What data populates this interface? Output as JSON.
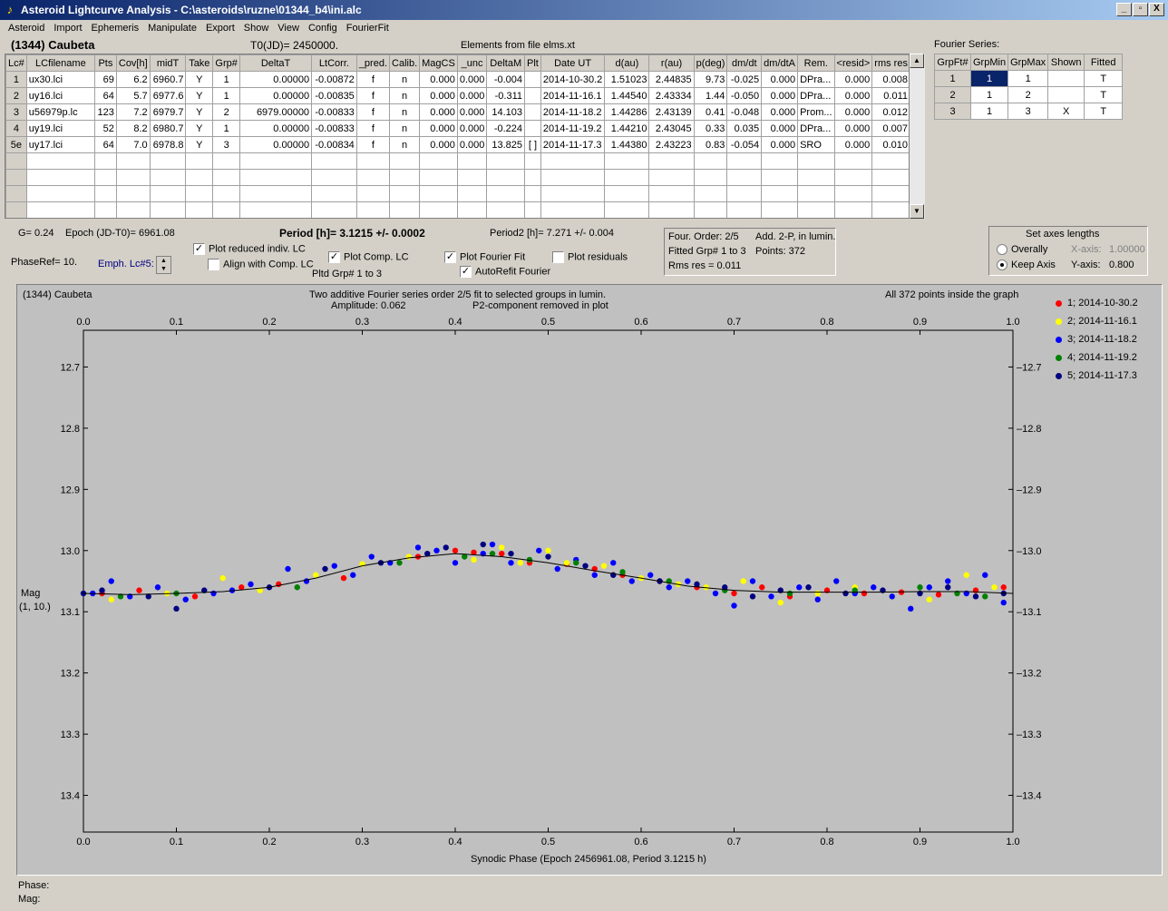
{
  "window": {
    "title": "Asteroid Lightcurve Analysis - C:\\asteroids\\ruzne\\01344_b4\\ini.alc",
    "buttons": [
      "_",
      "▫",
      "X"
    ]
  },
  "menu": [
    "Asteroid",
    "Import",
    "Ephemeris",
    "Manipulate",
    "Export",
    "Show",
    "View",
    "Config",
    "FourierFit"
  ],
  "header": {
    "asteroid": "(1344) Caubeta",
    "t0": "T0(JD)= 2450000.",
    "elements": "Elements from file elms.xt",
    "fourier_label": "Fourier Series:"
  },
  "lc_table": {
    "columns": [
      "Lc#",
      "LCfilename",
      "Pts",
      "Cov[h]",
      "midT",
      "Take",
      "Grp#",
      "DeltaT",
      "LtCorr.",
      "_pred.",
      "Calib.",
      "MagCS",
      "_unc",
      "DeltaM",
      "Plt",
      "Date UT",
      "d(au)",
      "r(au)",
      "p(deg)",
      "dm/dt",
      "dm/dtA",
      "Rem.",
      "<resid>",
      "rms res"
    ],
    "rows": [
      [
        "1",
        "ux30.lci",
        "69",
        "6.2",
        "6960.7",
        "Y",
        "1",
        "0.00000",
        "-0.00872",
        "f",
        "n",
        "0.000",
        "0.000",
        "-0.004",
        "",
        "2014-10-30.2",
        "1.51023",
        "2.44835",
        "9.73",
        "-0.025",
        "0.000",
        "DPra...",
        "0.000",
        "0.008"
      ],
      [
        "2",
        "uy16.lci",
        "64",
        "5.7",
        "6977.6",
        "Y",
        "1",
        "0.00000",
        "-0.00835",
        "f",
        "n",
        "0.000",
        "0.000",
        "-0.311",
        "",
        "2014-11-16.1",
        "1.44540",
        "2.43334",
        "1.44",
        "-0.050",
        "0.000",
        "DPra...",
        "0.000",
        "0.011"
      ],
      [
        "3",
        "u56979p.lc",
        "123",
        "7.2",
        "6979.7",
        "Y",
        "2",
        "6979.00000",
        "-0.00833",
        "f",
        "n",
        "0.000",
        "0.000",
        "14.103",
        "",
        "2014-11-18.2",
        "1.44286",
        "2.43139",
        "0.41",
        "-0.048",
        "0.000",
        "Prom...",
        "0.000",
        "0.012"
      ],
      [
        "4",
        "uy19.lci",
        "52",
        "8.2",
        "6980.7",
        "Y",
        "1",
        "0.00000",
        "-0.00833",
        "f",
        "n",
        "0.000",
        "0.000",
        "-0.224",
        "",
        "2014-11-19.2",
        "1.44210",
        "2.43045",
        "0.33",
        "0.035",
        "0.000",
        "DPra...",
        "0.000",
        "0.007"
      ],
      [
        "5e",
        "uy17.lci",
        "64",
        "7.0",
        "6978.8",
        "Y",
        "3",
        "0.00000",
        "-0.00834",
        "f",
        "n",
        "0.000",
        "0.000",
        "13.825",
        "[ ]",
        "2014-11-17.3",
        "1.44380",
        "2.43223",
        "0.83",
        "-0.054",
        "0.000",
        "SRO",
        "0.000",
        "0.010"
      ]
    ],
    "empty_rows": 4
  },
  "fourier_table": {
    "columns": [
      "GrpFt#",
      "GrpMin",
      "GrpMax",
      "Shown",
      "Fitted"
    ],
    "rows": [
      [
        "1",
        "1",
        "1",
        "",
        "T"
      ],
      [
        "2",
        "1",
        "2",
        "",
        "T"
      ],
      [
        "3",
        "1",
        "3",
        "X",
        "T"
      ]
    ]
  },
  "info": {
    "g": "G= 0.24",
    "epoch": "Epoch (JD-T0)= 6961.08",
    "period": "Period [h]= 3.1215 +/- 0.0002",
    "period2": "Period2 [h]= 7.271 +/- 0.004",
    "phaseref": "PhaseRef= 10.",
    "emph": "Emph. Lc#5:",
    "pltd": "Pltd Grp#  1   to   3"
  },
  "checkboxes": {
    "plot_reduced": {
      "label": "Plot reduced indiv. LC",
      "checked": "✓"
    },
    "align": {
      "label": "Align with Comp. LC",
      "checked": ""
    },
    "plot_comp": {
      "label": "Plot Comp. LC",
      "checked": "✓"
    },
    "plot_fourier": {
      "label": "Plot Fourier Fit",
      "checked": "✓"
    },
    "plot_resid": {
      "label": "Plot residuals",
      "checked": ""
    },
    "autorefit": {
      "label": "AutoRefit Fourier",
      "checked": "✓"
    }
  },
  "fit_box": {
    "order": "Four. Order:  2/5",
    "add": "Add. 2-P, in lumin.",
    "fitted": "Fitted Grp# 1 to 3",
    "points": "Points: 372",
    "rms": "Rms res     = 0.011"
  },
  "axes_box": {
    "title": "Set axes lengths",
    "overally": "Overally",
    "keep": "Keep Axis",
    "xaxis_label": "X-axis:",
    "xaxis_val": "1.00000",
    "yaxis_label": "Y-axis:",
    "yaxis_val": "0.800"
  },
  "plot": {
    "name": "(1344) Caubeta",
    "desc1": "Two additive Fourier series order 2/5 fit to selected groups in lumin.",
    "amp": "Amplitude: 0.062",
    "p2": "P2-component removed in plot",
    "inside": "All 372 points inside the graph",
    "ylabel1": "Mag",
    "ylabel2": "(1, 10.)",
    "xlabel": "Synodic Phase (Epoch 2456961.08, Period 3.1215 h)",
    "xticks": [
      "0.0",
      "0.1",
      "0.2",
      "0.3",
      "0.4",
      "0.5",
      "0.6",
      "0.7",
      "0.8",
      "0.9",
      "1.0"
    ],
    "yticks": [
      "12.7",
      "12.8",
      "12.9",
      "13.0",
      "13.1",
      "13.2",
      "13.3",
      "13.4"
    ]
  },
  "chart_data": {
    "type": "scatter",
    "title": "Two additive Fourier series order 2/5 fit to selected groups in lumin.",
    "xlabel": "Synodic Phase (Epoch 2456961.08, Period 3.1215 h)",
    "ylabel": "Mag",
    "xlim": [
      0.0,
      1.0
    ],
    "ylim": [
      12.64,
      13.46
    ],
    "y_inverted": true,
    "fit_curve": {
      "x": [
        0.0,
        0.05,
        0.1,
        0.15,
        0.2,
        0.25,
        0.3,
        0.35,
        0.4,
        0.45,
        0.5,
        0.55,
        0.6,
        0.65,
        0.7,
        0.75,
        0.8,
        0.85,
        0.9,
        0.95,
        1.0
      ],
      "y": [
        13.07,
        13.072,
        13.07,
        13.067,
        13.06,
        13.045,
        13.025,
        13.012,
        13.005,
        13.01,
        13.02,
        13.033,
        13.045,
        13.058,
        13.065,
        13.068,
        13.068,
        13.068,
        13.067,
        13.067,
        13.07
      ]
    },
    "series": [
      {
        "name": "1; 2014-10-30.2",
        "color": "#ff0000",
        "x": [
          0.02,
          0.06,
          0.12,
          0.17,
          0.21,
          0.28,
          0.36,
          0.4,
          0.42,
          0.45,
          0.48,
          0.52,
          0.55,
          0.58,
          0.62,
          0.66,
          0.7,
          0.73,
          0.76,
          0.8,
          0.84,
          0.88,
          0.92,
          0.96,
          0.99
        ],
        "y": [
          13.07,
          13.065,
          13.075,
          13.06,
          13.055,
          13.045,
          13.01,
          13.0,
          13.003,
          13.005,
          13.02,
          13.022,
          13.03,
          13.04,
          13.05,
          13.06,
          13.07,
          13.06,
          13.075,
          13.065,
          13.07,
          13.068,
          13.072,
          13.065,
          13.06
        ]
      },
      {
        "name": "2; 2014-11-16.1",
        "color": "#ffff00",
        "x": [
          0.03,
          0.09,
          0.15,
          0.19,
          0.25,
          0.3,
          0.35,
          0.42,
          0.45,
          0.47,
          0.5,
          0.52,
          0.56,
          0.6,
          0.64,
          0.67,
          0.71,
          0.75,
          0.79,
          0.83,
          0.87,
          0.91,
          0.95,
          0.98
        ],
        "y": [
          13.08,
          13.07,
          13.045,
          13.065,
          13.04,
          13.022,
          13.01,
          13.015,
          12.995,
          13.02,
          13.0,
          13.02,
          13.025,
          13.045,
          13.055,
          13.06,
          13.05,
          13.085,
          13.07,
          13.06,
          13.075,
          13.08,
          13.04,
          13.06
        ]
      },
      {
        "name": "3; 2014-11-18.2",
        "color": "#0000ff",
        "x": [
          0.01,
          0.03,
          0.05,
          0.08,
          0.11,
          0.14,
          0.16,
          0.18,
          0.22,
          0.24,
          0.27,
          0.29,
          0.31,
          0.33,
          0.36,
          0.38,
          0.4,
          0.43,
          0.44,
          0.46,
          0.49,
          0.51,
          0.53,
          0.55,
          0.57,
          0.59,
          0.61,
          0.63,
          0.65,
          0.68,
          0.7,
          0.72,
          0.74,
          0.77,
          0.79,
          0.81,
          0.83,
          0.85,
          0.87,
          0.89,
          0.91,
          0.93,
          0.95,
          0.97,
          0.99
        ],
        "y": [
          13.07,
          13.05,
          13.075,
          13.06,
          13.08,
          13.07,
          13.065,
          13.055,
          13.03,
          13.05,
          13.025,
          13.04,
          13.01,
          13.02,
          12.995,
          13.0,
          13.02,
          13.005,
          12.99,
          13.02,
          13.0,
          13.03,
          13.015,
          13.04,
          13.02,
          13.05,
          13.04,
          13.06,
          13.05,
          13.07,
          13.09,
          13.05,
          13.075,
          13.06,
          13.08,
          13.05,
          13.07,
          13.06,
          13.075,
          13.095,
          13.06,
          13.05,
          13.07,
          13.04,
          13.085
        ]
      },
      {
        "name": "4; 2014-11-19.2",
        "color": "#008000",
        "x": [
          0.04,
          0.1,
          0.23,
          0.34,
          0.41,
          0.44,
          0.48,
          0.53,
          0.58,
          0.63,
          0.69,
          0.76,
          0.83,
          0.9,
          0.94,
          0.97
        ],
        "y": [
          13.075,
          13.07,
          13.06,
          13.02,
          13.01,
          13.005,
          13.015,
          13.02,
          13.035,
          13.05,
          13.065,
          13.07,
          13.065,
          13.06,
          13.07,
          13.075
        ]
      },
      {
        "name": "5; 2014-11-17.3",
        "color": "#000080",
        "x": [
          0.0,
          0.02,
          0.07,
          0.1,
          0.13,
          0.2,
          0.26,
          0.32,
          0.37,
          0.39,
          0.43,
          0.46,
          0.5,
          0.54,
          0.57,
          0.62,
          0.66,
          0.69,
          0.72,
          0.75,
          0.78,
          0.82,
          0.86,
          0.9,
          0.93,
          0.96,
          0.99
        ],
        "y": [
          13.07,
          13.065,
          13.075,
          13.095,
          13.065,
          13.06,
          13.03,
          13.02,
          13.005,
          12.995,
          12.99,
          13.005,
          13.01,
          13.025,
          13.04,
          13.05,
          13.055,
          13.06,
          13.075,
          13.065,
          13.06,
          13.07,
          13.065,
          13.07,
          13.06,
          13.075,
          13.07
        ]
      }
    ]
  },
  "status": {
    "phase": "Phase:",
    "mag": "Mag:"
  }
}
